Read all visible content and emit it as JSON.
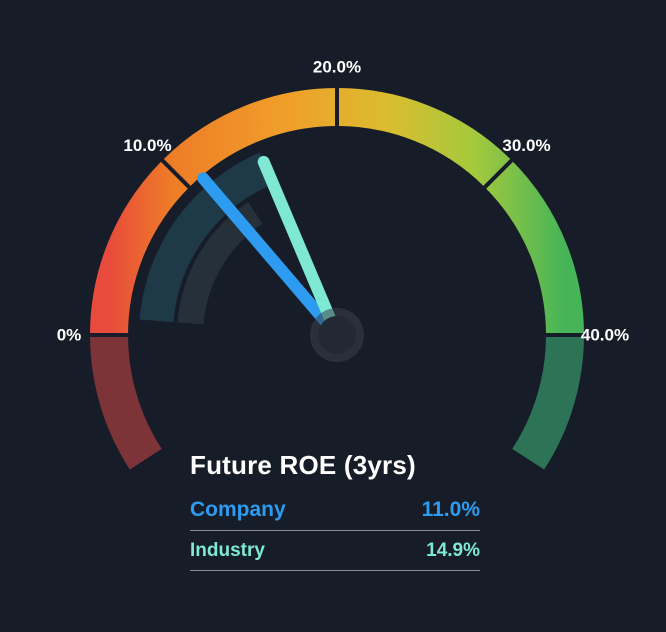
{
  "chart_data": {
    "type": "gauge",
    "title": "Future ROE (3yrs)",
    "background": "#171d28",
    "axis": {
      "min": 0,
      "max": 40,
      "start_angle_deg": 180,
      "end_angle_deg": 0,
      "extension_deg": 33,
      "ticks": [
        {
          "value": 0,
          "label": "0%"
        },
        {
          "value": 10,
          "label": "10.0%"
        },
        {
          "value": 20,
          "label": "20.0%"
        },
        {
          "value": 30,
          "label": "30.0%"
        },
        {
          "value": 40,
          "label": "40.0%"
        }
      ]
    },
    "series": [
      {
        "name": "Company",
        "value": 11.0,
        "display": "11.0%",
        "color": "#2d9bf0"
      },
      {
        "name": "Industry",
        "value": 14.9,
        "display": "14.9%",
        "color": "#7ee8d2"
      }
    ],
    "arc_gradient": [
      {
        "offset": "0%",
        "color": "#e84b3c"
      },
      {
        "offset": "14%",
        "color": "#ee7d27"
      },
      {
        "offset": "40%",
        "color": "#f0a02a"
      },
      {
        "offset": "62%",
        "color": "#d9bd31"
      },
      {
        "offset": "80%",
        "color": "#a5c93c"
      },
      {
        "offset": "100%",
        "color": "#45b558"
      }
    ],
    "muted_extensions": {
      "left_color": "#7d3438",
      "right_color": "#2c7455"
    },
    "inner_bands": [
      {
        "from": 1,
        "to": 14.9,
        "radius": 181,
        "width": 34,
        "color": "#1e3947"
      },
      {
        "from": 1,
        "to": 12.5,
        "radius": 147,
        "width": 26,
        "color": "#25303a"
      }
    ]
  }
}
